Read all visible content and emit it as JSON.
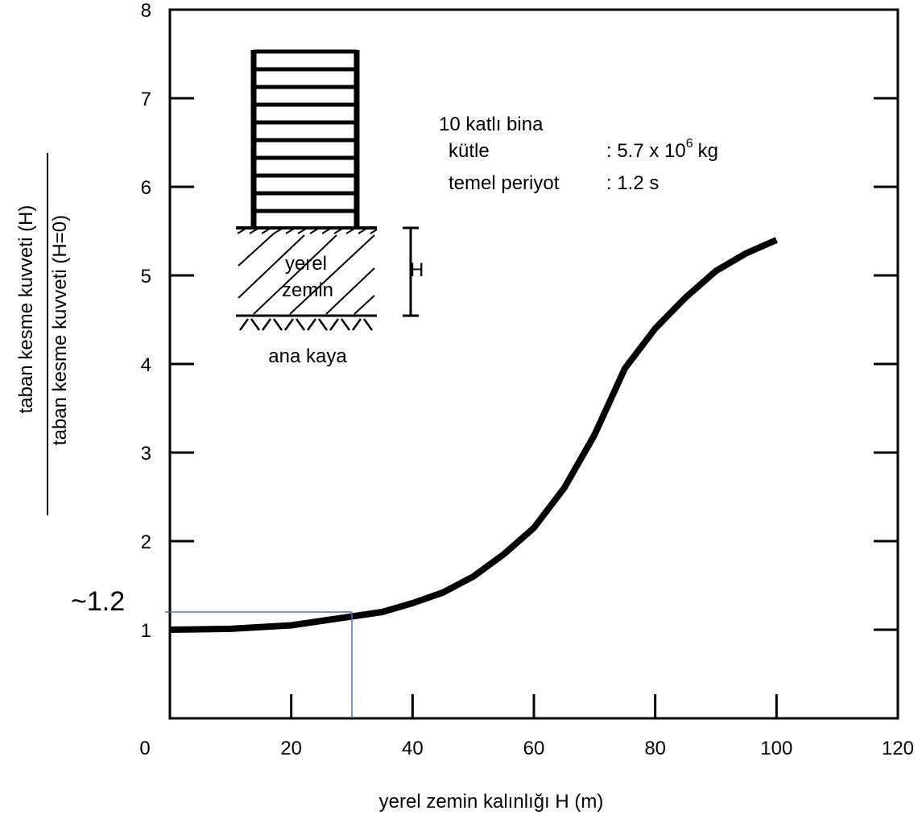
{
  "chart_data": {
    "type": "line",
    "y_label_numerator": "taban kesme kuvveti (H)",
    "y_label_denominator": "taban kesme kuvveti (H=0)",
    "x_label": "yerel zemin kalınlığı  H (m)",
    "xlim": [
      0,
      120
    ],
    "xticks": [
      0,
      20,
      40,
      60,
      80,
      100,
      120
    ],
    "ylim": [
      0,
      8
    ],
    "yticks": [
      1,
      2,
      3,
      4,
      5,
      6,
      7,
      8
    ],
    "series": [
      {
        "color": "#000000",
        "x": [
          0,
          10,
          20,
          30,
          35,
          40,
          45,
          50,
          55,
          60,
          65,
          70,
          72,
          75,
          80,
          85,
          90,
          95,
          100
        ],
        "values": [
          1.0,
          1.01,
          1.05,
          1.15,
          1.2,
          1.3,
          1.42,
          1.6,
          1.85,
          2.15,
          2.6,
          3.2,
          3.5,
          3.95,
          4.4,
          4.75,
          5.05,
          5.25,
          5.4
        ]
      }
    ],
    "annotation": {
      "text": "~1.2",
      "x": 30,
      "y": 1.2,
      "color": "#4472c4"
    },
    "inset": {
      "title": "10 katlı bina",
      "mass_label": "kütle",
      "mass_value": ": 5.7 x 10",
      "mass_exponent": "6",
      "mass_unit": "kg",
      "period_label": "temel periyot",
      "period_value": ": 1.2 s",
      "soil_line1": "yerel",
      "soil_line2": "zemin",
      "rock": "ana kaya",
      "thickness": "H"
    }
  }
}
